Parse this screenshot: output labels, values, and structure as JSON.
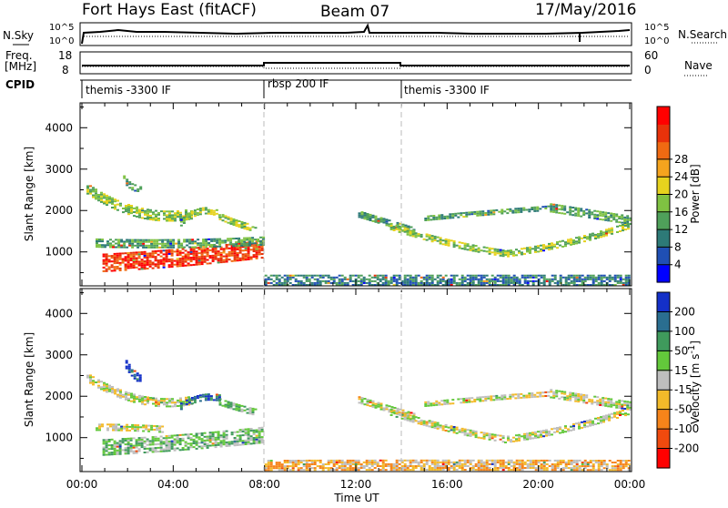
{
  "header": {
    "title": "Fort Hays East (fitACF)",
    "beam": "Beam 07",
    "date": "17/May/2016"
  },
  "strips": {
    "nsky_label": "N.Sky",
    "nsky_ticks": [
      "10^5",
      "10^0"
    ],
    "nsearch_label": "N.Search",
    "freq_label_1": "Freq.",
    "freq_label_2": "[MHz]",
    "freq_ticks": [
      "18",
      "8"
    ],
    "nave_label": "Nave",
    "nave_ticks": [
      "60",
      "0"
    ],
    "cpid_label": "CPID",
    "cpid_segments": [
      {
        "label": "themis -3300 IF",
        "start_hour": 0,
        "end_hour": 8
      },
      {
        "label": "rbsp 200 IF",
        "start_hour": 8,
        "end_hour": 14
      },
      {
        "label": "themis -3300 IF",
        "start_hour": 14,
        "end_hour": 24
      }
    ]
  },
  "chart_data": [
    {
      "type": "heatmap",
      "name": "power-panel",
      "xlabel": "",
      "ylabel": "Slant Range [km]",
      "xlim": [
        0,
        24
      ],
      "ylim": [
        180,
        4600
      ],
      "y_ticks": [
        1000,
        2000,
        3000,
        4000
      ],
      "colorbar": {
        "label": "Power [dB]",
        "ticks": [
          "28",
          "24",
          "20",
          "16",
          "12",
          "8",
          "4"
        ],
        "colors": [
          "#0000ff",
          "#1f4fb4",
          "#2d7a77",
          "#4fa05a",
          "#7fc242",
          "#e6d21e",
          "#f5a41e",
          "#f06a12",
          "#e8320a",
          "#ff0000"
        ]
      },
      "echo_bands": [
        {
          "start": 0.2,
          "end": 4.8,
          "r0": 2500,
          "r1": 1650,
          "r2": 1900,
          "thickness": 230,
          "level": 4
        },
        {
          "start": 1.8,
          "end": 2.6,
          "r0": 2750,
          "r1": 2450,
          "r2": 2550,
          "thickness": 160,
          "level": 3
        },
        {
          "start": 4.3,
          "end": 6.0,
          "r0": 1700,
          "r1": 2150,
          "r2": 1900,
          "thickness": 170,
          "level": 4
        },
        {
          "start": 6.0,
          "end": 7.6,
          "r0": 1850,
          "r1": 1650,
          "r2": 1550,
          "thickness": 170,
          "level": 4
        },
        {
          "start": 0.9,
          "end": 7.9,
          "r0": 720,
          "r1": 820,
          "r2": 1050,
          "thickness": 420,
          "level": 8
        },
        {
          "start": 0.6,
          "end": 7.9,
          "r0": 1200,
          "r1": 1150,
          "r2": 1250,
          "thickness": 200,
          "level": 3
        },
        {
          "start": 8.0,
          "end": 24.0,
          "r0": 300,
          "r1": 300,
          "r2": 300,
          "thickness": 240,
          "level": 2
        },
        {
          "start": 12.1,
          "end": 14.5,
          "r0": 1900,
          "r1": 1700,
          "r2": 1500,
          "thickness": 160,
          "level": 3
        },
        {
          "start": 13.5,
          "end": 18.5,
          "r0": 1600,
          "r1": 1150,
          "r2": 950,
          "thickness": 160,
          "level": 4
        },
        {
          "start": 18.5,
          "end": 24.0,
          "r0": 950,
          "r1": 1150,
          "r2": 1650,
          "thickness": 180,
          "level": 4
        },
        {
          "start": 15.0,
          "end": 20.5,
          "r0": 1800,
          "r1": 1950,
          "r2": 2050,
          "thickness": 120,
          "level": 3
        },
        {
          "start": 20.5,
          "end": 24.0,
          "r0": 2050,
          "r1": 1900,
          "r2": 1750,
          "thickness": 200,
          "level": 3
        }
      ]
    },
    {
      "type": "heatmap",
      "name": "velocity-panel",
      "xlabel": "Time UT",
      "ylabel": "Slant Range [km]",
      "xlim": [
        0,
        24
      ],
      "ylim": [
        180,
        4600
      ],
      "x_ticks": [
        "00:00",
        "04:00",
        "08:00",
        "12:00",
        "16:00",
        "20:00",
        "00:00"
      ],
      "y_ticks": [
        1000,
        2000,
        3000,
        4000
      ],
      "colorbar": {
        "label": "Velocity [m s",
        "label_exponent": "-1",
        "label_close": "]",
        "ticks": [
          "200",
          "100",
          "50",
          "15",
          "-15",
          "-50",
          "-100",
          "-200"
        ],
        "colors": [
          "#ff0000",
          "#f04a0e",
          "#f6841a",
          "#f2ba2a",
          "#bebebe",
          "#63c83b",
          "#3f9a5c",
          "#2a6e90",
          "#1430c8"
        ]
      },
      "echo_bands": [
        {
          "start": 0.2,
          "end": 4.8,
          "r0": 2450,
          "r1": 1650,
          "r2": 1900,
          "thickness": 220,
          "level": 4
        },
        {
          "start": 1.9,
          "end": 2.5,
          "r0": 2750,
          "r1": 2500,
          "r2": 2400,
          "thickness": 200,
          "level": 8
        },
        {
          "start": 4.3,
          "end": 6.0,
          "r0": 1750,
          "r1": 2050,
          "r2": 1950,
          "thickness": 170,
          "level": 7
        },
        {
          "start": 6.0,
          "end": 7.6,
          "r0": 1850,
          "r1": 1700,
          "r2": 1600,
          "thickness": 160,
          "level": 5
        },
        {
          "start": 0.9,
          "end": 7.9,
          "r0": 750,
          "r1": 850,
          "r2": 1050,
          "thickness": 380,
          "level": 5
        },
        {
          "start": 0.6,
          "end": 3.5,
          "r0": 1250,
          "r1": 1250,
          "r2": 1200,
          "thickness": 180,
          "level": 4
        },
        {
          "start": 8.0,
          "end": 24.0,
          "r0": 320,
          "r1": 330,
          "r2": 320,
          "thickness": 250,
          "level": 3
        },
        {
          "start": 12.1,
          "end": 14.5,
          "r0": 1900,
          "r1": 1700,
          "r2": 1500,
          "thickness": 160,
          "level": 4
        },
        {
          "start": 13.5,
          "end": 18.5,
          "r0": 1600,
          "r1": 1150,
          "r2": 950,
          "thickness": 160,
          "level": 4
        },
        {
          "start": 18.5,
          "end": 24.0,
          "r0": 950,
          "r1": 1150,
          "r2": 1650,
          "thickness": 180,
          "level": 4
        },
        {
          "start": 15.0,
          "end": 20.5,
          "r0": 1800,
          "r1": 1950,
          "r2": 2050,
          "thickness": 120,
          "level": 4
        },
        {
          "start": 20.5,
          "end": 24.0,
          "r0": 2050,
          "r1": 1900,
          "r2": 1750,
          "thickness": 200,
          "level": 4
        }
      ]
    }
  ]
}
